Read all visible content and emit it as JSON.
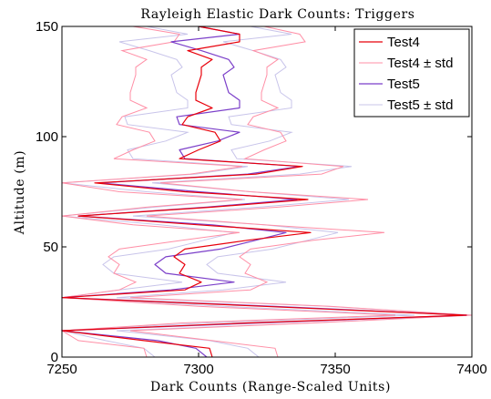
{
  "chart_data": {
    "type": "line",
    "title": "Rayleigh Elastic Dark Counts: Triggers",
    "xlabel": "Dark Counts (Range-Scaled Units)",
    "ylabel": "Altitude (m)",
    "xlim": [
      7250,
      7400
    ],
    "ylim": [
      0,
      150
    ],
    "xticks": [
      7250,
      7300,
      7350,
      7400
    ],
    "yticks": [
      0,
      50,
      100,
      150
    ],
    "grid": false,
    "legend_position": "top-right",
    "altitude": [
      0,
      4,
      7.5,
      12,
      15.5,
      19,
      23,
      27,
      30.5,
      34,
      38,
      42,
      45.5,
      49,
      53,
      56.5,
      60,
      64,
      68,
      71.5,
      75,
      79,
      83,
      86.5,
      90,
      94,
      98,
      102,
      105.5,
      109,
      113,
      116.5,
      120,
      124,
      128,
      131.5,
      135,
      139,
      143,
      146.5,
      150
    ],
    "series": [
      {
        "name": "Test4",
        "color": "#e8000b",
        "values": [
          7305,
          7304,
          7280,
          7250,
          7318,
          7398,
          7324,
          7250,
          7295,
          7301,
          7293,
          7295,
          7291,
          7295,
          7318,
          7341,
          7300,
          7256,
          7305,
          7340,
          7295,
          7262,
          7321,
          7338,
          7293,
          7300,
          7308,
          7306,
          7294,
          7296,
          7305,
          7299,
          7299,
          7300,
          7301,
          7301,
          7305,
          7296,
          7315,
          7315,
          7300
        ]
      },
      {
        "name": "Test4 ± std",
        "color": "#ff8fa6",
        "role": "band",
        "upper": [
          7329,
          7328,
          7305,
          7275,
          7342,
          7400,
          7348,
          7275,
          7319,
          7325,
          7317,
          7319,
          7315,
          7319,
          7342,
          7368,
          7324,
          7281,
          7329,
          7362,
          7319,
          7286,
          7345,
          7353,
          7317,
          7324,
          7332,
          7330,
          7318,
          7320,
          7329,
          7323,
          7323,
          7324,
          7325,
          7325,
          7329,
          7320,
          7339,
          7337,
          7324
        ],
        "lower": [
          7281,
          7280,
          7256,
          7250,
          7294,
          7372,
          7300,
          7250,
          7271,
          7277,
          7269,
          7271,
          7267,
          7271,
          7294,
          7315,
          7276,
          7250,
          7281,
          7316,
          7271,
          7250,
          7297,
          7316,
          7269,
          7276,
          7284,
          7282,
          7270,
          7272,
          7281,
          7275,
          7275,
          7276,
          7277,
          7277,
          7281,
          7272,
          7291,
          7293,
          7276
        ]
      },
      {
        "name": "Test5",
        "color": "#7b3fc9",
        "values": [
          7303,
          7299,
          7285,
          7250,
          7322,
          7398,
          7328,
          7250,
          7290,
          7313,
          7288,
          7284,
          7288,
          7308,
          7321,
          7332,
          7305,
          7256,
          7303,
          7336,
          7300,
          7264,
          7318,
          7337,
          7295,
          7293,
          7307,
          7315,
          7293,
          7292,
          7315,
          7315,
          7311,
          7310,
          7309,
          7313,
          7311,
          7301,
          7290,
          7315,
          7300
        ]
      },
      {
        "name": "Test5 ± std",
        "color": "#c8c4ea",
        "role": "band",
        "upper": [
          7322,
          7318,
          7304,
          7270,
          7341,
          7400,
          7347,
          7270,
          7309,
          7332,
          7307,
          7303,
          7307,
          7327,
          7340,
          7351,
          7324,
          7276,
          7322,
          7355,
          7319,
          7283,
          7337,
          7356,
          7314,
          7312,
          7326,
          7334,
          7312,
          7311,
          7334,
          7334,
          7330,
          7329,
          7328,
          7332,
          7330,
          7320,
          7309,
          7334,
          7319
        ],
        "lower": [
          7284,
          7280,
          7266,
          7250,
          7303,
          7379,
          7309,
          7250,
          7271,
          7294,
          7269,
          7265,
          7269,
          7289,
          7302,
          7313,
          7286,
          7250,
          7284,
          7317,
          7281,
          7250,
          7299,
          7318,
          7276,
          7274,
          7288,
          7296,
          7274,
          7273,
          7296,
          7296,
          7292,
          7291,
          7290,
          7294,
          7292,
          7282,
          7271,
          7296,
          7281
        ]
      }
    ]
  }
}
